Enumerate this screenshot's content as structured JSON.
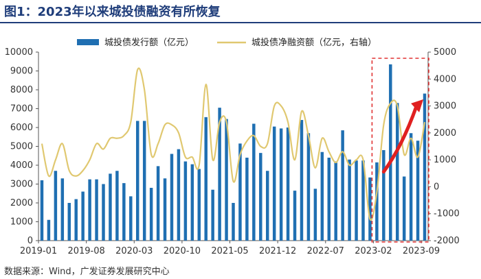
{
  "title": "图1：2023年以来城投债融资有所恢复",
  "source": "数据来源：Wind，广发证券发展研究中心",
  "chart_data": {
    "type": "bar+line",
    "legend": [
      "城投债发行额（亿元）",
      "城投债净融资额（亿元，右轴）"
    ],
    "left_axis": {
      "min": 0,
      "max": 10000,
      "ticks": [
        0,
        1000,
        2000,
        3000,
        4000,
        5000,
        6000,
        7000,
        8000,
        9000,
        10000
      ]
    },
    "right_axis": {
      "min": -2000,
      "max": 5000,
      "ticks": [
        -2000,
        -1000,
        0,
        1000,
        2000,
        3000,
        4000,
        5000
      ]
    },
    "x_ticks": [
      {
        "label": "2019-01",
        "index": 0
      },
      {
        "label": "2019-08",
        "index": 7
      },
      {
        "label": "2020-03",
        "index": 14
      },
      {
        "label": "2020-10",
        "index": 21
      },
      {
        "label": "2021-05",
        "index": 28
      },
      {
        "label": "2021-12",
        "index": 35
      },
      {
        "label": "2022-07",
        "index": 42
      },
      {
        "label": "2023-02",
        "index": 49
      },
      {
        "label": "2023-09",
        "index": 56
      }
    ],
    "issuance": [
      3200,
      1100,
      3700,
      3300,
      2000,
      2200,
      2600,
      3250,
      3250,
      3000,
      3550,
      3700,
      3050,
      2350,
      6350,
      6350,
      2800,
      3950,
      3300,
      4600,
      4850,
      4200,
      4050,
      3800,
      6550,
      2700,
      7050,
      6450,
      2000,
      5150,
      4400,
      6200,
      4650,
      3700,
      6050,
      5950,
      6000,
      2650,
      6400,
      5700,
      2750,
      4700,
      4400,
      4200,
      5850,
      4300,
      4250,
      4250,
      3350,
      4150,
      4800,
      9350,
      7300,
      3400,
      5700,
      5300,
      7800
    ],
    "net_financing": [
      1600,
      400,
      1000,
      1600,
      600,
      400,
      600,
      1000,
      1600,
      1400,
      1800,
      1800,
      1900,
      2400,
      4350,
      3600,
      1200,
      1600,
      2300,
      2300,
      2000,
      1100,
      1100,
      800,
      3800,
      1000,
      2400,
      2400,
      200,
      1200,
      1700,
      1900,
      1500,
      1600,
      3000,
      3000,
      2400,
      1000,
      2800,
      1900,
      700,
      1800,
      1300,
      900,
      1300,
      800,
      1000,
      1000,
      -1200,
      -200,
      2300,
      3100,
      3000,
      1200,
      1800,
      1100,
      2400
    ],
    "highlight": {
      "from_index": 49,
      "to_index": 56
    },
    "colors": {
      "bar": "#1f6fb2",
      "line": "#e0c870",
      "highlight": "#e03030",
      "arrow": "#e02020"
    }
  }
}
